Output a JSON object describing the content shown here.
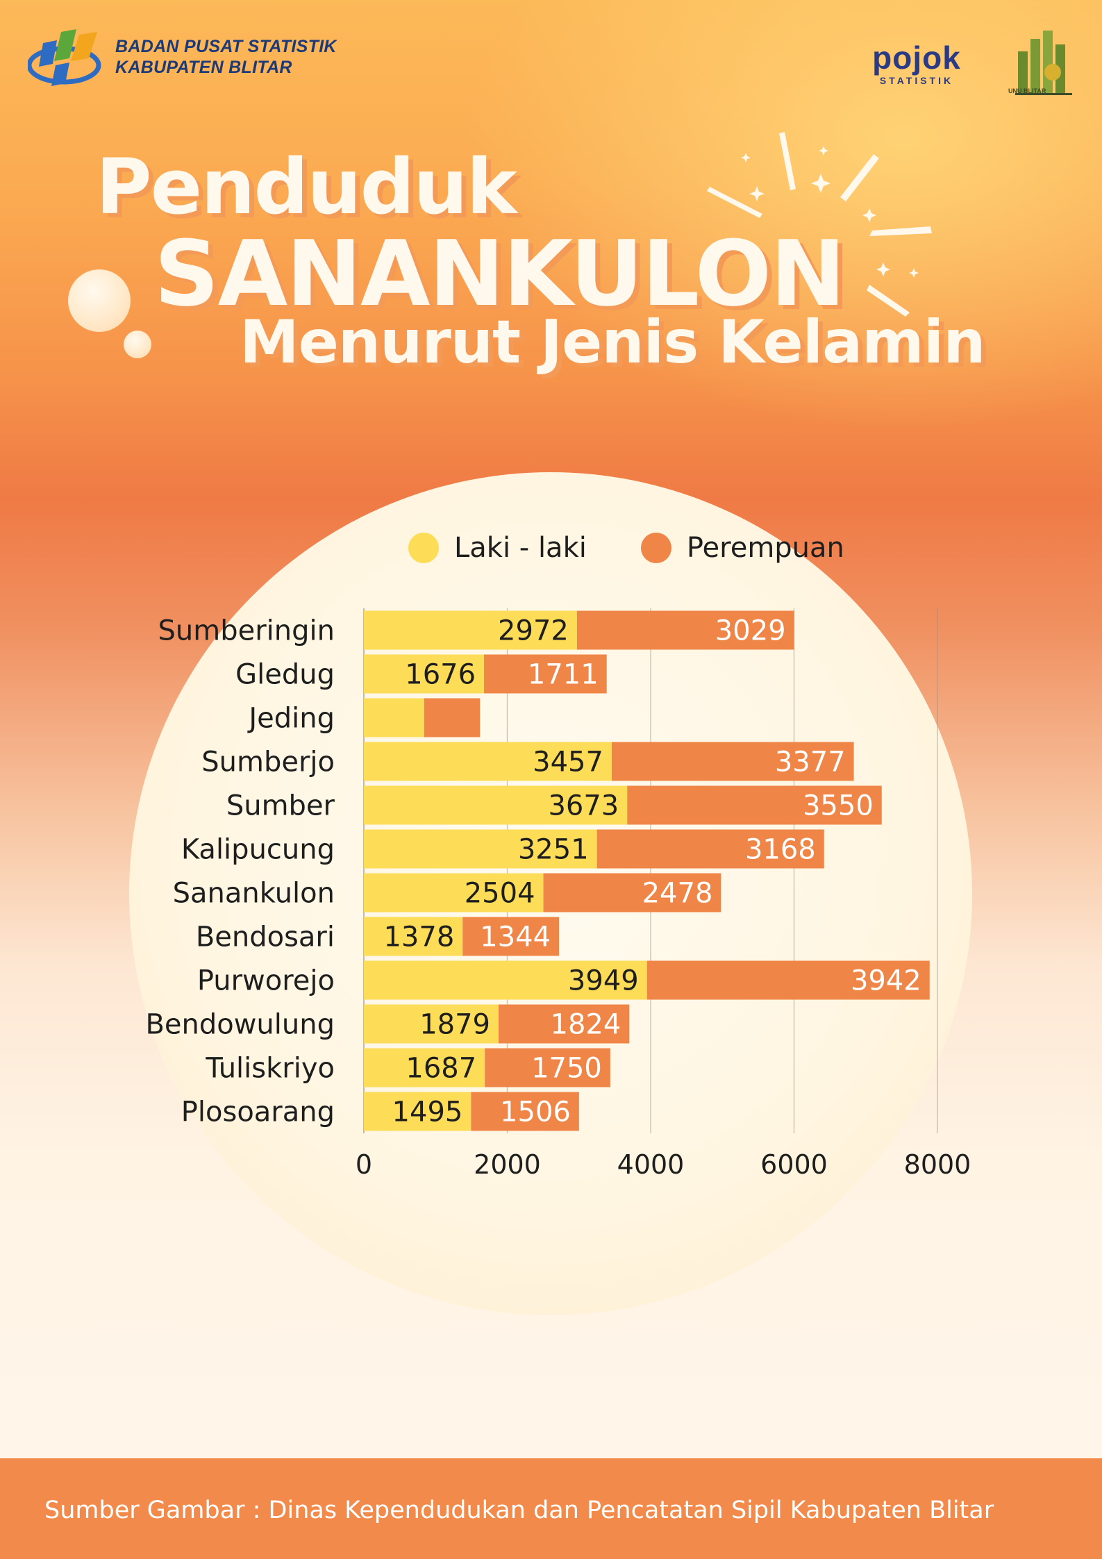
{
  "header": {
    "org_line1": "BADAN PUSAT STATISTIK",
    "org_line2": "KABUPATEN BLITAR",
    "pojok_word": "pojok",
    "pojok_sub": "STATISTIK",
    "unu_label": "UNU BLITAR"
  },
  "title": {
    "line1": "Penduduk",
    "line2": "SANANKULON",
    "line3": "Menurut Jenis Kelamin"
  },
  "colors": {
    "laki": "#fddc58",
    "perempuan": "#ef8648",
    "grid": "#9a8f86",
    "footer": "#f18a4a"
  },
  "chart_data": {
    "type": "bar",
    "orientation": "horizontal",
    "stacked": true,
    "categories": [
      "Sumberingin",
      "Gledug",
      "Jeding",
      "Sumberjo",
      "Sumber",
      "Kalipucung",
      "Sanankulon",
      "Bendosari",
      "Purworejo",
      "Bendowulung",
      "Tuliskriyo",
      "Plosoarang"
    ],
    "series": [
      {
        "name": "Laki - laki",
        "values": [
          2972,
          1676,
          840,
          3457,
          3673,
          3251,
          2504,
          1378,
          3949,
          1879,
          1687,
          1495
        ],
        "labels": [
          "2972",
          "1676",
          "",
          "3457",
          "3673",
          "3251",
          "2504",
          "1378",
          "3949",
          "1879",
          "1687",
          "1495"
        ]
      },
      {
        "name": "Perempuan",
        "values": [
          3029,
          1711,
          780,
          3377,
          3550,
          3168,
          2478,
          1344,
          3942,
          1824,
          1750,
          1506
        ],
        "labels": [
          "3029",
          "1711",
          "",
          "3377",
          "3550",
          "3168",
          "2478",
          "1344",
          "3942",
          "1824",
          "1750",
          "1506"
        ]
      }
    ],
    "xlim": [
      0,
      8000
    ],
    "xticks": [
      "0",
      "2000",
      "4000",
      "6000",
      "8000"
    ],
    "grid": true,
    "legend": "top"
  },
  "footer": {
    "text": "Sumber Gambar  : Dinas Kependudukan dan Pencatatan Sipil Kabupaten Blitar"
  }
}
